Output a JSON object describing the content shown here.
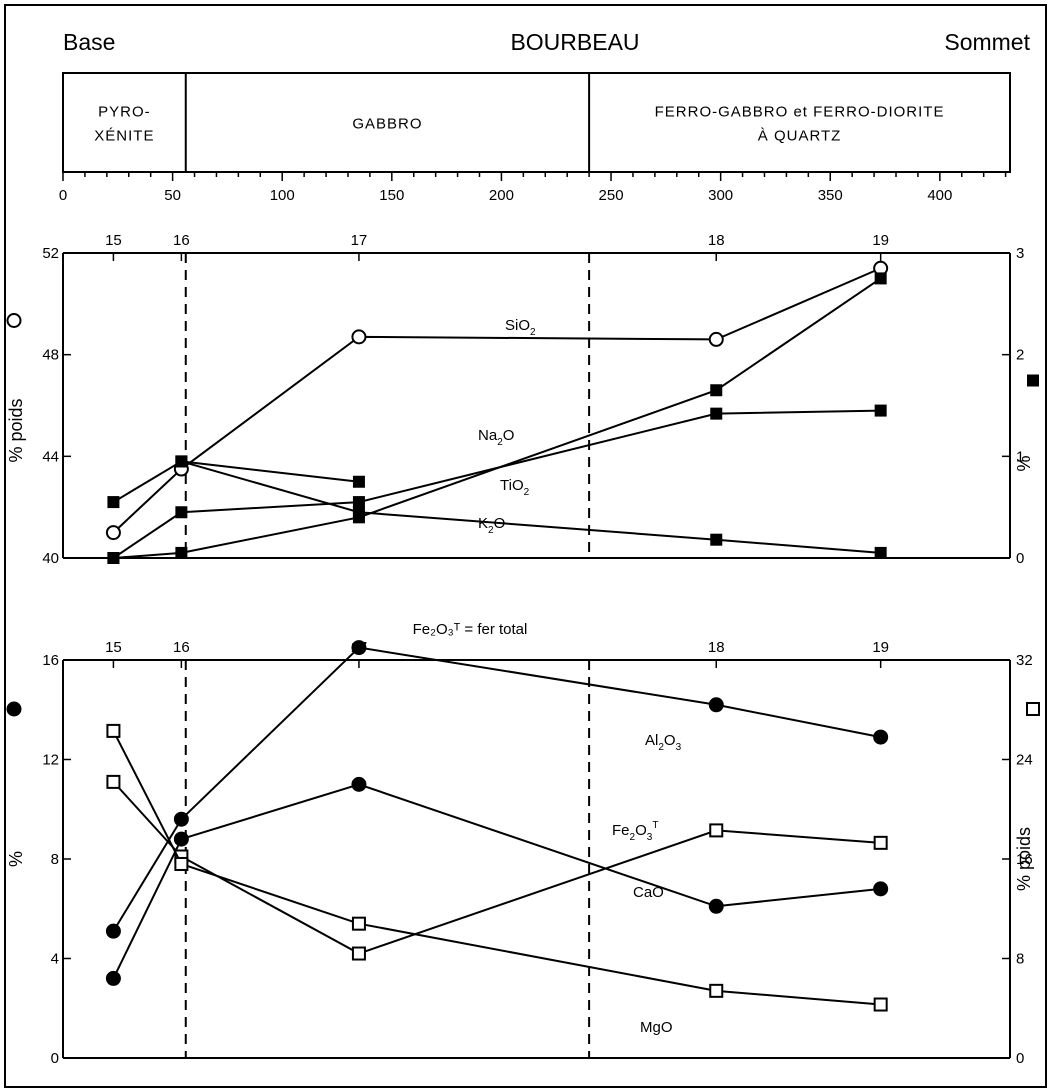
{
  "header": {
    "left": "Base",
    "title": "BOURBEAU",
    "right": "Sommet"
  },
  "zones": [
    {
      "lines": [
        "PYRO-",
        "XÉNITE"
      ],
      "from": 0,
      "to": 56
    },
    {
      "lines": [
        "GABBRO"
      ],
      "from": 56,
      "to": 240
    },
    {
      "lines": [
        "FERRO-GABBRO et FERRO-DIORITE",
        "À QUARTZ"
      ],
      "from": 240,
      "to": 432
    }
  ],
  "chart_data": [
    {
      "type": "line",
      "panel": "top",
      "x_scale": {
        "min": 0,
        "max": 432,
        "ticks": [
          0,
          50,
          100,
          150,
          200,
          250,
          300,
          350,
          400
        ],
        "ticks_labels": [
          "0",
          "50",
          "100",
          "150",
          "200",
          "250",
          "300",
          "350",
          "400"
        ]
      },
      "samples": [
        {
          "label": "15",
          "x": 23
        },
        {
          "label": "16",
          "x": 54
        },
        {
          "label": "17",
          "x": 135
        },
        {
          "label": "18",
          "x": 298
        },
        {
          "label": "19",
          "x": 373
        }
      ],
      "dashed_lines_x": [
        56,
        240
      ],
      "y_left": {
        "min": 40,
        "max": 52,
        "ticks": [
          40,
          44,
          48,
          52
        ],
        "label": "% poids",
        "marker": "open-circle"
      },
      "y_right": {
        "min": 0,
        "max": 3,
        "ticks": [
          0,
          1,
          2,
          3
        ],
        "label": "%",
        "marker": "filled-square"
      },
      "series": [
        {
          "name": "SiO",
          "sub": "2",
          "sup": "",
          "axis": "left",
          "marker": "open-circle",
          "x": [
            23,
            54,
            135,
            298,
            373
          ],
          "values": [
            41.0,
            43.5,
            48.7,
            48.6,
            51.4
          ]
        },
        {
          "name": "Na",
          "sub": "2",
          "name2": "O",
          "sup": "",
          "axis": "right",
          "marker": "filled-square",
          "x": [
            23,
            54,
            135,
            298,
            373
          ],
          "values": [
            0.0,
            0.05,
            0.4,
            1.65,
            2.75
          ]
        },
        {
          "name": "TiO",
          "sub": "2",
          "sup": "",
          "axis": "right",
          "marker": "filled-square",
          "x": [
            23,
            54,
            135,
            298,
            373
          ],
          "values": [
            0.0,
            0.45,
            0.55,
            1.42,
            1.45
          ]
        },
        {
          "name": "K",
          "sub": "2",
          "name2": "O",
          "sup": "",
          "axis": "right",
          "marker": "filled-square",
          "x": [
            23,
            54,
            135,
            298,
            373
          ],
          "values": [
            0.55,
            0.95,
            0.45,
            0.18,
            0.05
          ]
        },
        {
          "name": "",
          "sub": "",
          "sup": "",
          "axis": "right",
          "marker": "filled-square",
          "x": [
            54,
            135
          ],
          "values": [
            0.95,
            0.75
          ]
        }
      ]
    },
    {
      "type": "line",
      "panel": "bottom",
      "note": "Fe₂O₃ᵀ = fer total",
      "samples": [
        {
          "label": "15",
          "x": 23
        },
        {
          "label": "16",
          "x": 54
        },
        {
          "label": "17",
          "x": 135
        },
        {
          "label": "18",
          "x": 298
        },
        {
          "label": "19",
          "x": 373
        }
      ],
      "dashed_lines_x": [
        56,
        240
      ],
      "y_left": {
        "min": 0,
        "max": 16,
        "ticks": [
          0,
          4,
          8,
          12,
          16
        ],
        "label": "%",
        "marker": "filled-circle"
      },
      "y_right": {
        "min": 0,
        "max": 32,
        "ticks": [
          0,
          8,
          16,
          24,
          32
        ],
        "label": "% poids",
        "marker": "open-square"
      },
      "series": [
        {
          "name": "Al",
          "sub": "2",
          "name2": "O",
          "sub2": "3",
          "sup": "",
          "axis": "left",
          "marker": "filled-circle",
          "x": [
            23,
            54,
            135,
            298,
            373
          ],
          "values": [
            5.1,
            9.6,
            16.5,
            14.2,
            12.9
          ]
        },
        {
          "name": "CaO",
          "sub": "",
          "sup": "",
          "axis": "left",
          "marker": "filled-circle",
          "x": [
            23,
            54,
            135,
            298,
            373
          ],
          "values": [
            3.2,
            8.8,
            11.0,
            6.1,
            6.8
          ]
        },
        {
          "name": "Fe",
          "sub": "2",
          "name2": "O",
          "sub2": "3",
          "sup": "T",
          "axis": "right",
          "marker": "open-square",
          "x": [
            23,
            54,
            135,
            298,
            373
          ],
          "values": [
            22.2,
            16.2,
            8.4,
            18.3,
            17.3
          ]
        },
        {
          "name": "MgO",
          "sub": "",
          "sup": "",
          "axis": "right",
          "marker": "open-square",
          "x": [
            23,
            54,
            135,
            298,
            373
          ],
          "values": [
            26.3,
            15.6,
            10.8,
            5.4,
            4.3
          ]
        }
      ]
    }
  ]
}
